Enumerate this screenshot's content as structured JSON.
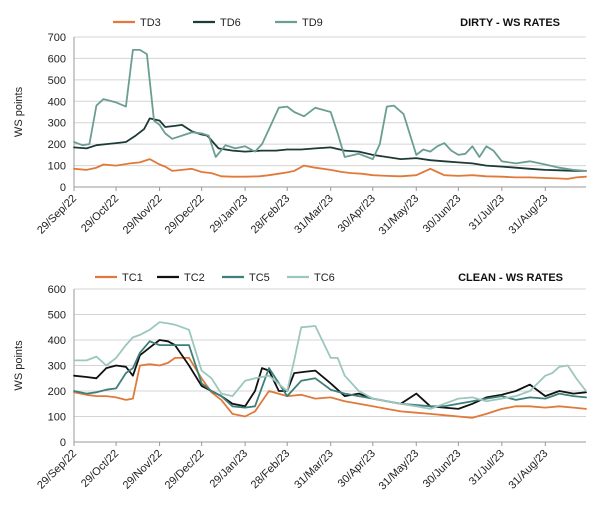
{
  "chart_data": [
    {
      "type": "line",
      "title": "DIRTY - WS RATES",
      "ylabel": "WS points",
      "xlabel": "",
      "ylim": [
        0,
        700
      ],
      "yticks": [
        0,
        100,
        200,
        300,
        400,
        500,
        600,
        700
      ],
      "grid": true,
      "legend_position": "top-left",
      "xtick_labels": [
        "29/Sep/22",
        "29/Oct/22",
        "29/Nov/22",
        "29/Dec/22",
        "29/Jan/23",
        "28/Feb/23",
        "31/Mar/23",
        "30/Apr/23",
        "31/May/23",
        "30/Jun/23",
        "31/Jul/23",
        "31/Aug/23"
      ],
      "x_range": [
        "2022-09-29",
        "2023-09-29"
      ],
      "series": [
        {
          "name": "TD3",
          "color": "#e07a3a",
          "x": [
            "2022-09-29",
            "2022-10-08",
            "2022-10-15",
            "2022-10-20",
            "2022-10-29",
            "2022-11-08",
            "2022-11-15",
            "2022-11-22",
            "2022-11-29",
            "2022-12-03",
            "2022-12-08",
            "2022-12-15",
            "2022-12-22",
            "2022-12-29",
            "2023-01-05",
            "2023-01-12",
            "2023-01-20",
            "2023-01-29",
            "2023-02-08",
            "2023-02-15",
            "2023-02-22",
            "2023-02-28",
            "2023-03-05",
            "2023-03-12",
            "2023-03-20",
            "2023-03-31",
            "2023-04-08",
            "2023-04-15",
            "2023-04-22",
            "2023-04-30",
            "2023-05-10",
            "2023-05-20",
            "2023-05-31",
            "2023-06-05",
            "2023-06-10",
            "2023-06-15",
            "2023-06-20",
            "2023-06-30",
            "2023-07-10",
            "2023-07-20",
            "2023-07-31",
            "2023-08-10",
            "2023-08-20",
            "2023-08-31",
            "2023-09-08",
            "2023-09-16",
            "2023-09-22",
            "2023-09-29"
          ],
          "values": [
            85,
            80,
            90,
            105,
            100,
            110,
            115,
            130,
            105,
            95,
            75,
            80,
            85,
            70,
            65,
            50,
            48,
            48,
            50,
            55,
            62,
            68,
            75,
            100,
            90,
            80,
            70,
            65,
            62,
            55,
            52,
            50,
            55,
            70,
            85,
            70,
            55,
            52,
            55,
            50,
            48,
            45,
            45,
            42,
            40,
            38,
            45,
            48
          ]
        },
        {
          "name": "TD6",
          "color": "#1d3a36",
          "x": [
            "2022-09-29",
            "2022-10-08",
            "2022-10-15",
            "2022-10-22",
            "2022-10-29",
            "2022-11-05",
            "2022-11-12",
            "2022-11-18",
            "2022-11-22",
            "2022-11-29",
            "2022-12-03",
            "2022-12-10",
            "2022-12-15",
            "2022-12-22",
            "2022-12-29",
            "2023-01-02",
            "2023-01-10",
            "2023-01-20",
            "2023-01-29",
            "2023-02-10",
            "2023-02-20",
            "2023-02-28",
            "2023-03-10",
            "2023-03-20",
            "2023-03-31",
            "2023-04-10",
            "2023-04-20",
            "2023-04-30",
            "2023-05-10",
            "2023-05-20",
            "2023-05-31",
            "2023-06-10",
            "2023-06-20",
            "2023-06-30",
            "2023-07-10",
            "2023-07-20",
            "2023-07-31",
            "2023-08-10",
            "2023-08-20",
            "2023-08-31",
            "2023-09-10",
            "2023-09-20",
            "2023-09-29"
          ],
          "values": [
            185,
            180,
            195,
            200,
            205,
            210,
            240,
            270,
            320,
            310,
            280,
            285,
            290,
            260,
            245,
            240,
            180,
            170,
            165,
            170,
            170,
            175,
            175,
            180,
            185,
            170,
            165,
            150,
            140,
            130,
            135,
            125,
            120,
            115,
            110,
            100,
            95,
            90,
            85,
            80,
            78,
            75,
            75
          ]
        },
        {
          "name": "TD9",
          "color": "#6b9e93",
          "x": [
            "2022-09-29",
            "2022-10-05",
            "2022-10-10",
            "2022-10-15",
            "2022-10-20",
            "2022-10-29",
            "2022-11-05",
            "2022-11-10",
            "2022-11-15",
            "2022-11-20",
            "2022-11-25",
            "2022-11-29",
            "2022-12-03",
            "2022-12-08",
            "2022-12-15",
            "2022-12-22",
            "2022-12-29",
            "2023-01-03",
            "2023-01-08",
            "2023-01-15",
            "2023-01-22",
            "2023-01-29",
            "2023-02-05",
            "2023-02-10",
            "2023-02-15",
            "2023-02-22",
            "2023-02-28",
            "2023-03-05",
            "2023-03-12",
            "2023-03-20",
            "2023-03-31",
            "2023-04-05",
            "2023-04-10",
            "2023-04-20",
            "2023-04-30",
            "2023-05-05",
            "2023-05-10",
            "2023-05-15",
            "2023-05-22",
            "2023-05-31",
            "2023-06-05",
            "2023-06-10",
            "2023-06-15",
            "2023-06-20",
            "2023-06-25",
            "2023-06-30",
            "2023-07-05",
            "2023-07-10",
            "2023-07-15",
            "2023-07-20",
            "2023-07-25",
            "2023-07-31",
            "2023-08-10",
            "2023-08-20",
            "2023-08-31",
            "2023-09-10",
            "2023-09-20",
            "2023-09-29"
          ],
          "values": [
            210,
            195,
            200,
            380,
            410,
            395,
            375,
            640,
            640,
            620,
            310,
            290,
            250,
            225,
            240,
            255,
            250,
            240,
            140,
            195,
            180,
            190,
            165,
            200,
            270,
            370,
            375,
            350,
            330,
            370,
            350,
            250,
            140,
            155,
            130,
            200,
            375,
            380,
            340,
            150,
            175,
            165,
            190,
            205,
            170,
            150,
            155,
            190,
            140,
            190,
            170,
            120,
            110,
            120,
            105,
            90,
            80,
            75
          ]
        }
      ]
    },
    {
      "type": "line",
      "title": "CLEAN - WS RATES",
      "ylabel": "WS points",
      "xlabel": "",
      "ylim": [
        0,
        600
      ],
      "yticks": [
        0,
        100,
        200,
        300,
        400,
        500,
        600
      ],
      "grid": true,
      "legend_position": "top-left",
      "xtick_labels": [
        "29/Sep/22",
        "29/Oct/22",
        "29/Nov/22",
        "29/Dec/22",
        "29/Jan/23",
        "28/Feb/23",
        "31/Mar/23",
        "30/Apr/23",
        "31/May/23",
        "30/Jun/23",
        "31/Jul/23",
        "31/Aug/23"
      ],
      "x_range": [
        "2022-09-29",
        "2023-09-29"
      ],
      "series": [
        {
          "name": "TC1",
          "color": "#e07a3a",
          "x": [
            "2022-09-29",
            "2022-10-08",
            "2022-10-15",
            "2022-10-22",
            "2022-10-29",
            "2022-11-05",
            "2022-11-10",
            "2022-11-15",
            "2022-11-22",
            "2022-11-29",
            "2022-12-05",
            "2022-12-10",
            "2022-12-20",
            "2022-12-29",
            "2023-01-05",
            "2023-01-12",
            "2023-01-20",
            "2023-01-29",
            "2023-02-05",
            "2023-02-15",
            "2023-02-28",
            "2023-03-10",
            "2023-03-20",
            "2023-03-31",
            "2023-04-10",
            "2023-04-20",
            "2023-04-30",
            "2023-05-10",
            "2023-05-20",
            "2023-05-31",
            "2023-06-10",
            "2023-06-20",
            "2023-06-30",
            "2023-07-10",
            "2023-07-20",
            "2023-07-31",
            "2023-08-10",
            "2023-08-20",
            "2023-08-31",
            "2023-09-10",
            "2023-09-20",
            "2023-09-29"
          ],
          "values": [
            195,
            185,
            180,
            180,
            175,
            165,
            170,
            300,
            305,
            300,
            310,
            330,
            330,
            250,
            195,
            165,
            110,
            100,
            120,
            200,
            180,
            185,
            170,
            175,
            160,
            150,
            140,
            130,
            120,
            115,
            110,
            105,
            100,
            95,
            110,
            130,
            140,
            140,
            135,
            140,
            135,
            130
          ]
        },
        {
          "name": "TC2",
          "color": "#111111",
          "x": [
            "2022-09-29",
            "2022-10-08",
            "2022-10-15",
            "2022-10-22",
            "2022-10-29",
            "2022-11-05",
            "2022-11-10",
            "2022-11-15",
            "2022-11-22",
            "2022-11-29",
            "2022-12-05",
            "2022-12-10",
            "2022-12-20",
            "2022-12-29",
            "2023-01-05",
            "2023-01-12",
            "2023-01-20",
            "2023-01-29",
            "2023-02-05",
            "2023-02-10",
            "2023-02-15",
            "2023-02-22",
            "2023-02-28",
            "2023-03-05",
            "2023-03-12",
            "2023-03-20",
            "2023-03-31",
            "2023-04-10",
            "2023-04-20",
            "2023-04-30",
            "2023-05-10",
            "2023-05-20",
            "2023-05-31",
            "2023-06-10",
            "2023-06-20",
            "2023-06-30",
            "2023-07-10",
            "2023-07-20",
            "2023-07-31",
            "2023-08-10",
            "2023-08-20",
            "2023-08-31",
            "2023-09-10",
            "2023-09-20",
            "2023-09-29"
          ],
          "values": [
            260,
            255,
            250,
            290,
            300,
            295,
            260,
            340,
            370,
            400,
            395,
            380,
            300,
            220,
            200,
            180,
            150,
            140,
            200,
            290,
            280,
            200,
            200,
            270,
            275,
            280,
            230,
            180,
            190,
            170,
            160,
            150,
            190,
            140,
            135,
            130,
            150,
            175,
            185,
            200,
            225,
            180,
            200,
            190,
            195
          ]
        },
        {
          "name": "TC5",
          "color": "#3f7f7a",
          "x": [
            "2022-09-29",
            "2022-10-08",
            "2022-10-15",
            "2022-10-22",
            "2022-10-29",
            "2022-11-05",
            "2022-11-10",
            "2022-11-15",
            "2022-11-22",
            "2022-11-29",
            "2022-12-05",
            "2022-12-10",
            "2022-12-20",
            "2022-12-29",
            "2023-01-05",
            "2023-01-12",
            "2023-01-20",
            "2023-01-29",
            "2023-02-05",
            "2023-02-15",
            "2023-02-28",
            "2023-03-10",
            "2023-03-20",
            "2023-03-31",
            "2023-04-10",
            "2023-04-20",
            "2023-04-30",
            "2023-05-10",
            "2023-05-20",
            "2023-05-31",
            "2023-06-10",
            "2023-06-20",
            "2023-06-30",
            "2023-07-10",
            "2023-07-20",
            "2023-07-31",
            "2023-08-10",
            "2023-08-20",
            "2023-08-31",
            "2023-09-10",
            "2023-09-20",
            "2023-09-29"
          ],
          "values": [
            200,
            190,
            195,
            205,
            210,
            270,
            290,
            350,
            395,
            380,
            380,
            380,
            380,
            230,
            200,
            180,
            140,
            135,
            140,
            290,
            180,
            240,
            250,
            205,
            190,
            180,
            170,
            160,
            150,
            145,
            140,
            140,
            150,
            160,
            170,
            180,
            165,
            175,
            170,
            190,
            180,
            175
          ]
        },
        {
          "name": "TC6",
          "color": "#9cc7bf",
          "x": [
            "2022-09-29",
            "2022-10-08",
            "2022-10-15",
            "2022-10-22",
            "2022-10-29",
            "2022-11-05",
            "2022-11-10",
            "2022-11-15",
            "2022-11-22",
            "2022-11-29",
            "2022-12-05",
            "2022-12-10",
            "2022-12-20",
            "2022-12-29",
            "2023-01-05",
            "2023-01-12",
            "2023-01-20",
            "2023-01-29",
            "2023-02-05",
            "2023-02-15",
            "2023-02-28",
            "2023-03-05",
            "2023-03-10",
            "2023-03-20",
            "2023-03-31",
            "2023-04-05",
            "2023-04-10",
            "2023-04-20",
            "2023-04-30",
            "2023-05-10",
            "2023-05-20",
            "2023-05-31",
            "2023-06-10",
            "2023-06-20",
            "2023-06-30",
            "2023-07-10",
            "2023-07-20",
            "2023-07-31",
            "2023-08-10",
            "2023-08-20",
            "2023-08-31",
            "2023-09-05",
            "2023-09-10",
            "2023-09-16",
            "2023-09-22",
            "2023-09-29"
          ],
          "values": [
            320,
            320,
            335,
            300,
            330,
            380,
            410,
            420,
            440,
            470,
            465,
            460,
            440,
            280,
            250,
            190,
            180,
            240,
            250,
            260,
            200,
            320,
            450,
            455,
            330,
            330,
            260,
            200,
            170,
            160,
            150,
            140,
            130,
            150,
            170,
            175,
            160,
            170,
            180,
            200,
            260,
            270,
            295,
            300,
            250,
            200
          ]
        }
      ]
    }
  ]
}
